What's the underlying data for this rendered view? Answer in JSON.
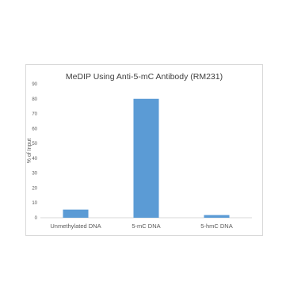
{
  "chart_data": {
    "type": "bar",
    "title": "MeDIP Using Anti-5-mC Antibody (RM231)",
    "xlabel": "",
    "ylabel": "% of Input",
    "categories": [
      "Unmethylated DNA",
      "5-mC DNA",
      "5-hmC DNA"
    ],
    "values": [
      5.5,
      80,
      1.8
    ],
    "ylim": [
      0,
      90
    ],
    "yticks": [
      0,
      10,
      20,
      30,
      40,
      50,
      60,
      70,
      80,
      90
    ],
    "grid": false,
    "legend": "none",
    "bar_color": "#5b9bd5"
  }
}
